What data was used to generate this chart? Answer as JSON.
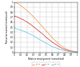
{
  "background_color": "#ffffff",
  "xlim": [
    0,
    1
  ],
  "ylim": [
    0,
    1
  ],
  "xticks": [
    0.0,
    0.1,
    0.2,
    0.3,
    0.4,
    0.5,
    0.6,
    0.7,
    0.8,
    0.9,
    1.0
  ],
  "yticks": [
    0.0,
    0.1,
    0.2,
    0.3,
    0.4,
    0.5,
    0.6,
    0.7,
    0.8,
    0.9,
    1.0
  ],
  "xlabel": "Relative misalignment (normalized)",
  "ylabel": "Transverse moment (normalized)",
  "lines": [
    {
      "color": "#f4a060",
      "x": [
        0.0,
        0.05,
        0.1,
        0.15,
        0.2,
        0.25,
        0.3,
        0.35,
        0.4,
        0.45,
        0.5,
        0.55,
        0.6,
        0.65,
        0.7,
        0.75,
        0.8,
        0.85,
        0.9,
        0.95,
        1.0
      ],
      "y": [
        1.0,
        0.97,
        0.93,
        0.88,
        0.83,
        0.77,
        0.71,
        0.64,
        0.57,
        0.5,
        0.43,
        0.36,
        0.29,
        0.23,
        0.17,
        0.12,
        0.08,
        0.05,
        0.03,
        0.015,
        0.005
      ],
      "label": "d_{c}=1"
    },
    {
      "color": "#e04040",
      "x": [
        0.0,
        0.05,
        0.1,
        0.15,
        0.2,
        0.25,
        0.3,
        0.35,
        0.4,
        0.45,
        0.5,
        0.55,
        0.6,
        0.65,
        0.7,
        0.75,
        0.8,
        0.85,
        0.9,
        0.95,
        1.0
      ],
      "y": [
        0.72,
        0.7,
        0.67,
        0.64,
        0.6,
        0.56,
        0.51,
        0.46,
        0.41,
        0.36,
        0.3,
        0.25,
        0.2,
        0.16,
        0.12,
        0.08,
        0.055,
        0.035,
        0.02,
        0.01,
        0.005
      ],
      "label": "d_{c}=2"
    },
    {
      "color": "#70c8e8",
      "x": [
        0.0,
        0.05,
        0.1,
        0.15,
        0.2,
        0.25,
        0.3,
        0.35,
        0.4,
        0.45,
        0.5,
        0.55,
        0.6,
        0.65,
        0.7,
        0.75,
        0.8,
        0.85,
        0.9,
        0.95,
        1.0
      ],
      "y": [
        0.48,
        0.46,
        0.44,
        0.42,
        0.39,
        0.36,
        0.33,
        0.29,
        0.25,
        0.22,
        0.18,
        0.15,
        0.11,
        0.09,
        0.065,
        0.045,
        0.03,
        0.02,
        0.012,
        0.006,
        0.003
      ],
      "label": "d_{c}=3"
    }
  ],
  "legend_colors": [
    "#f4a060",
    "#e04040",
    "#70c8e8"
  ],
  "legend_labels": [
    "$d_{c}$=1",
    "$d_{c}$=2",
    "$d_{c}$=3"
  ]
}
